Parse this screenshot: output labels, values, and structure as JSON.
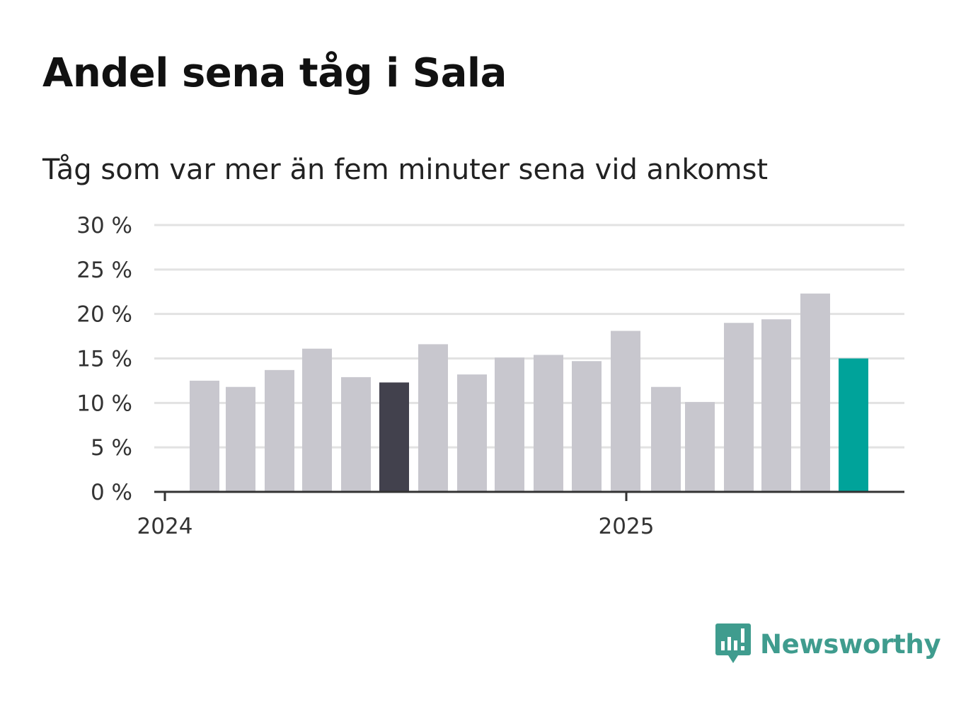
{
  "chart_data": {
    "type": "bar",
    "title": "Andel sena tåg i Sala",
    "subtitle": "Tåg som var mer än fem minuter sena vid ankomst",
    "categories": [
      "2024-02",
      "2024-03",
      "2024-04",
      "2024-05",
      "2024-06",
      "2024-07",
      "2024-08",
      "2024-09",
      "2024-10",
      "2024-11",
      "2024-12",
      "2025-01",
      "2025-02",
      "2025-03",
      "2025-04",
      "2025-05",
      "2025-06",
      "2025-07"
    ],
    "values": [
      12.5,
      11.8,
      13.7,
      16.1,
      12.9,
      12.3,
      16.6,
      13.2,
      15.1,
      15.4,
      14.7,
      18.1,
      11.8,
      10.1,
      19.0,
      19.4,
      22.3,
      15.0
    ],
    "ylim": [
      0,
      30
    ],
    "yticks": [
      0,
      5,
      10,
      15,
      20,
      25,
      30
    ],
    "ytick_labels": [
      "0 %",
      "5 %",
      "10 %",
      "15 %",
      "20 %",
      "25 %",
      "30 %"
    ],
    "xtick_labels": [
      "2024",
      "2025"
    ],
    "xlabel": "",
    "ylabel": "",
    "grid": true,
    "colors": {
      "default": "#c8c7ce",
      "highlight_dark": "#42414d",
      "highlight_latest": "#00a39a",
      "grid": "#e2e2e2",
      "axis": "#333333"
    },
    "highlight": {
      "dark_index": 5,
      "latest_index": 17
    }
  },
  "brand": {
    "name": "Newsworthy",
    "icon": "newsworthy-logo-icon",
    "color": "#3f9c8e"
  }
}
